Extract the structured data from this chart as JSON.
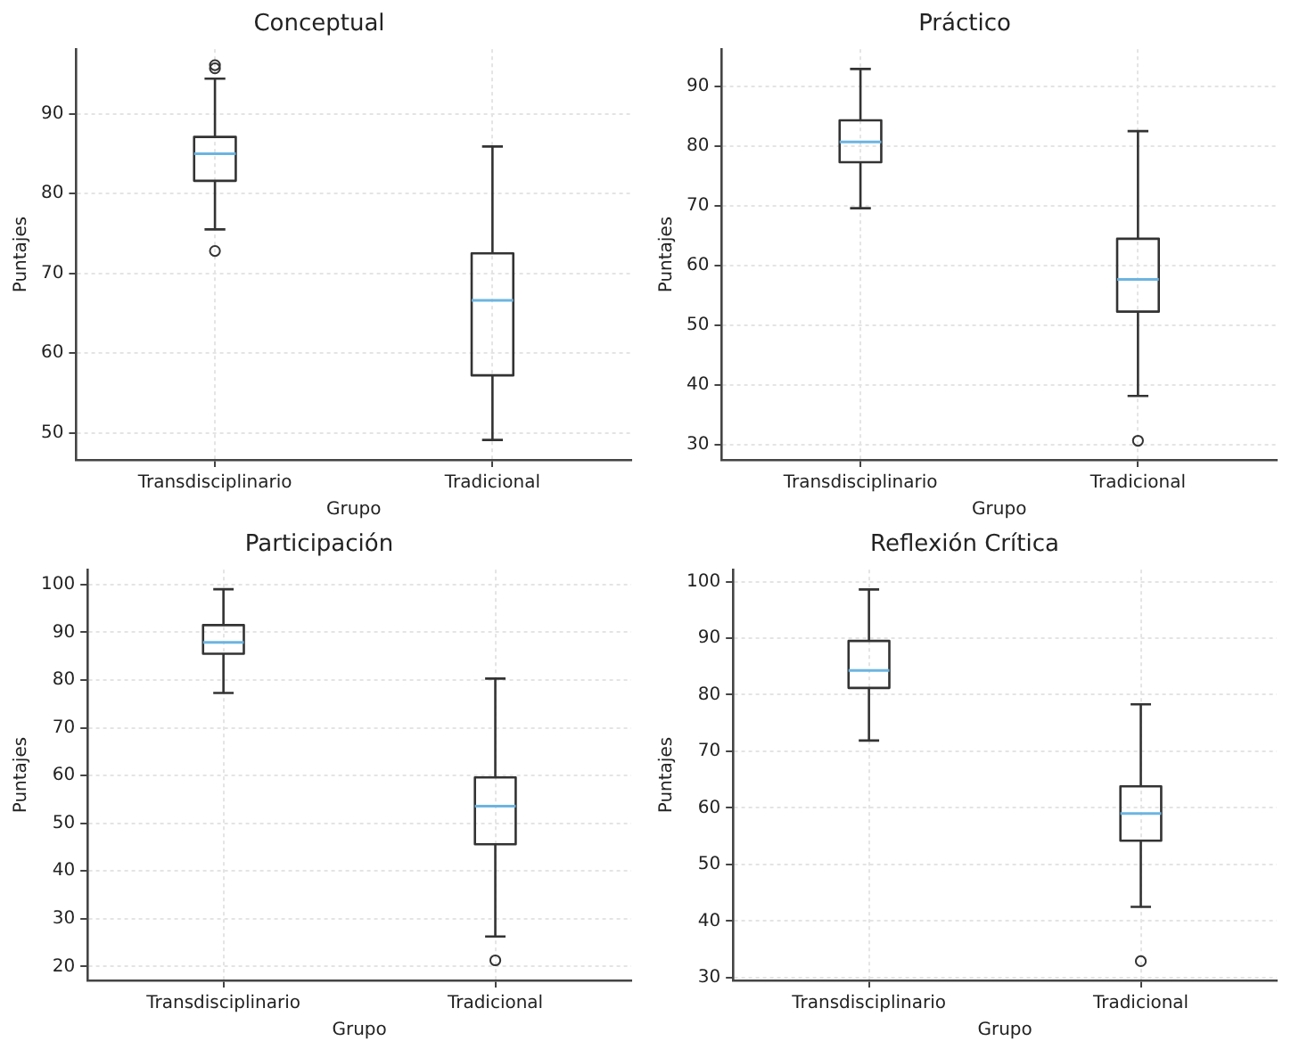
{
  "chart_data": [
    {
      "type": "box",
      "title": "Conceptual",
      "xlabel": "Grupo",
      "ylabel": "Puntajes",
      "categories": [
        "Transdisciplinario",
        "Tradicional"
      ],
      "boxes": [
        {
          "low": 75.5,
          "q1": 81.6,
          "median": 85.0,
          "q3": 87.1,
          "high": 94.4,
          "outliers": [
            96.1,
            95.7,
            72.8
          ]
        },
        {
          "low": 49.1,
          "q1": 57.2,
          "median": 66.6,
          "q3": 72.5,
          "high": 85.9
        }
      ],
      "ylim": [
        46.6,
        98.1
      ],
      "yticks": [
        50,
        60,
        70,
        80,
        90
      ],
      "grid": true
    },
    {
      "type": "box",
      "title": "Práctico",
      "xlabel": "Grupo",
      "ylabel": "Puntajes",
      "categories": [
        "Transdisciplinario",
        "Tradicional"
      ],
      "boxes": [
        {
          "low": 69.6,
          "q1": 77.3,
          "median": 80.7,
          "q3": 84.3,
          "high": 92.9
        },
        {
          "low": 38.2,
          "q1": 52.3,
          "median": 57.7,
          "q3": 64.5,
          "high": 82.5,
          "outliers": [
            30.7
          ]
        }
      ],
      "ylim": [
        27.5,
        96.2
      ],
      "yticks": [
        30,
        40,
        50,
        60,
        70,
        80,
        90
      ],
      "grid": true
    },
    {
      "type": "box",
      "title": "Participación",
      "xlabel": "Grupo",
      "ylabel": "Puntajes",
      "categories": [
        "Transdisciplinario",
        "Tradicional"
      ],
      "boxes": [
        {
          "low": 77.3,
          "q1": 85.5,
          "median": 87.9,
          "q3": 91.5,
          "high": 99
        },
        {
          "low": 26.3,
          "q1": 45.6,
          "median": 53.6,
          "q3": 59.6,
          "high": 80.3,
          "outliers": [
            21.3
          ]
        }
      ],
      "ylim": [
        17.1,
        103.1
      ],
      "yticks": [
        20,
        30,
        40,
        50,
        60,
        70,
        80,
        90,
        100
      ],
      "grid": true
    },
    {
      "type": "box",
      "title": "Reflexión Crítica",
      "xlabel": "Grupo",
      "ylabel": "Puntajes",
      "categories": [
        "Transdisciplinario",
        "Tradicional"
      ],
      "boxes": [
        {
          "low": 71.9,
          "q1": 81.2,
          "median": 84.3,
          "q3": 89.5,
          "high": 98.6
        },
        {
          "low": 42.5,
          "q1": 54.2,
          "median": 59.0,
          "q3": 63.8,
          "high": 78.3,
          "outliers": [
            32.9
          ]
        }
      ],
      "ylim": [
        29.5,
        102.1
      ],
      "yticks": [
        30,
        40,
        50,
        60,
        70,
        80,
        90,
        100
      ],
      "grid": true
    }
  ]
}
